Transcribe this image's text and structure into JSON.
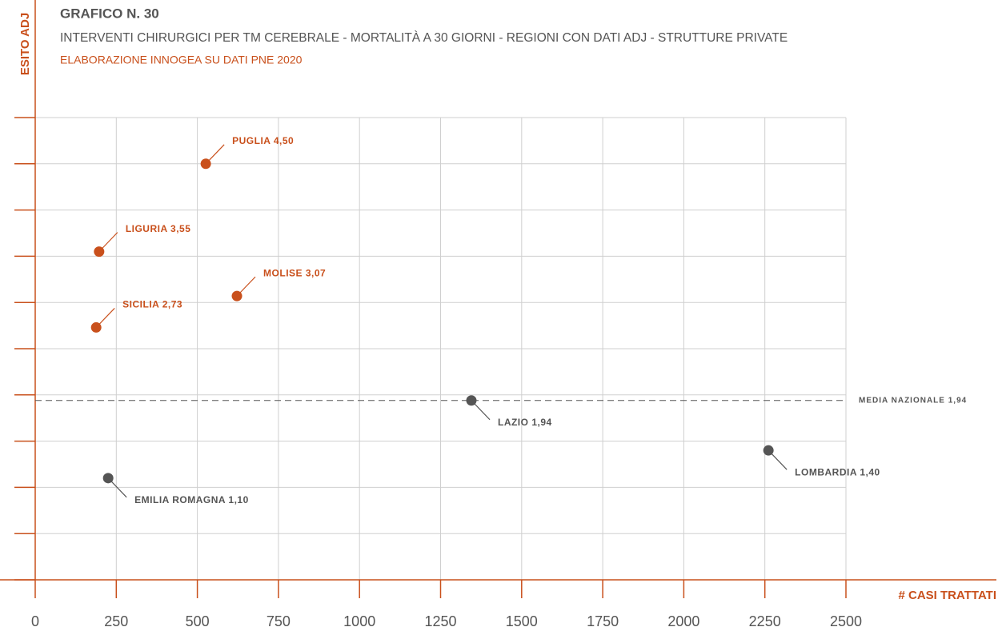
{
  "chart_data": {
    "type": "scatter",
    "title": "GRAFICO N. 30",
    "subtitle": "INTERVENTI CHIRURGICI PER TM CEREBRALE - MORTALITÀ A 30 GIORNI - REGIONI CON DATI ADJ - STRUTTURE PRIVATE",
    "source": "ELABORAZIONE INNOGEA SU DATI PNE 2020",
    "x_label": "# CASI TRATTATI",
    "y_label": "ESITO ADJ",
    "x": [
      526,
      197,
      622,
      188,
      1345,
      2261,
      225
    ],
    "values": [
      4.5,
      3.55,
      3.07,
      2.73,
      1.94,
      1.4,
      1.1
    ],
    "point_labels": [
      "PUGLIA 4,50",
      "LIGURIA 3,55",
      "MOLISE 3,07",
      "SICILIA 2,73",
      "LAZIO 1,94",
      "LOMBARDIA 1,40",
      "EMILIA ROMAGNA 1,10"
    ],
    "colors": [
      "#c9501c",
      "#c9501c",
      "#c9501c",
      "#c9501c",
      "#555555",
      "#555555",
      "#555555"
    ],
    "reference_line": {
      "value": 1.94,
      "label": "MEDIA NAZIONALE 1,94"
    },
    "xlim": [
      0,
      2500
    ],
    "xticks": [
      0,
      250,
      500,
      750,
      1000,
      1250,
      1500,
      1750,
      2000,
      2250,
      2500
    ],
    "ylim": [
      0,
      5
    ],
    "yticks": [
      0,
      0.5,
      1,
      1.5,
      2,
      2.5,
      3,
      3.5,
      4,
      4.5,
      5
    ],
    "grid": true
  }
}
